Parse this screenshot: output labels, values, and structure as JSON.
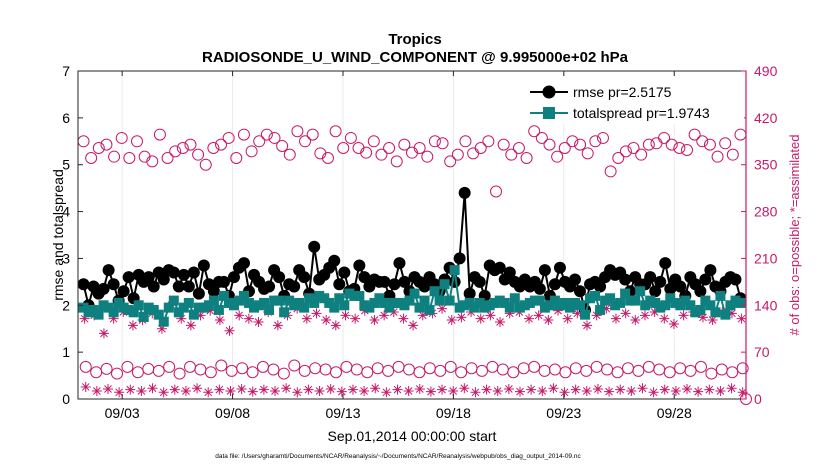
{
  "chart_data": {
    "type": "line",
    "title": "Tropics",
    "subtitle": "RADIOSONDE_U_WIND_COMPONENT @ 9.995000e+02 hPa",
    "xlabel": "Sep.01,2014 00:00:00 start",
    "ylabel_left": "rmse and totalspread",
    "ylabel_right": "# of obs: o=possible; *=assimilated",
    "footnote": "data file: /Users/gharamti/Documents/NCAR/Reanalysis/~/Documents/NCAR/Reanalysis/webpub/obs_diag_output_2014-09.nc",
    "ylim_left": [
      0,
      7
    ],
    "ylim_right": [
      0,
      490
    ],
    "xlim": [
      1.0,
      31.25
    ],
    "x_ticks": [
      3,
      8,
      13,
      18,
      23,
      28
    ],
    "x_tick_labels": [
      "09/03",
      "09/08",
      "09/13",
      "09/18",
      "09/23",
      "09/28"
    ],
    "y_ticks_left": [
      0,
      1,
      2,
      3,
      4,
      5,
      6,
      7
    ],
    "y_ticks_right": [
      0,
      70,
      140,
      210,
      280,
      350,
      420,
      490
    ],
    "legend": [
      {
        "label": "rmse pr=2.5175",
        "color": "#000000",
        "marker": "circle"
      },
      {
        "label": "totalspread pr=1.9743",
        "color": "#0f8080",
        "marker": "square"
      }
    ],
    "colors": {
      "rmse": "#000000",
      "totalspread": "#0f8080",
      "obs": "#c8196b"
    },
    "series": [
      {
        "name": "rmse",
        "values": [
          2.45,
          2.0,
          2.4,
          2.25,
          2.35,
          2.75,
          2.45,
          2.1,
          2.3,
          2.6,
          2.15,
          2.65,
          2.5,
          2.6,
          2.4,
          2.7,
          2.55,
          2.75,
          2.7,
          2.4,
          2.65,
          2.4,
          2.7,
          2.25,
          2.85,
          2.45,
          2.3,
          2.5,
          2.5,
          2.2,
          2.6,
          2.8,
          2.9,
          2.3,
          2.65,
          2.5,
          2.35,
          2.4,
          2.75,
          2.6,
          2.2,
          2.45,
          2.4,
          2.75,
          2.6,
          2.25,
          3.25,
          2.55,
          2.65,
          2.8,
          2.95,
          2.45,
          2.7,
          2.3,
          2.35,
          2.85,
          2.6,
          2.4,
          2.55,
          2.5,
          2.5,
          2.2,
          2.45,
          2.9,
          2.5,
          2.3,
          2.6,
          2.5,
          2.4,
          2.6,
          2.45,
          2.3,
          2.55,
          2.8,
          2.5,
          3.0,
          4.4,
          2.25,
          2.6,
          2.5,
          2.2,
          2.85,
          2.75,
          2.8,
          2.55,
          2.7,
          2.5,
          2.4,
          2.55,
          2.4,
          2.5,
          2.35,
          2.75,
          2.2,
          2.45,
          2.8,
          2.5,
          2.4,
          2.55,
          2.3,
          1.9,
          2.45,
          2.5,
          2.4,
          2.6,
          2.75,
          2.65,
          2.7,
          2.55,
          2.3,
          2.6,
          2.45,
          2.45,
          2.6,
          2.3,
          2.5,
          2.9,
          2.35,
          2.55,
          2.4,
          2.2,
          2.6,
          2.45,
          2.3,
          2.55,
          2.75,
          2.4,
          2.3,
          2.5,
          2.6,
          2.55,
          2.15
        ]
      },
      {
        "name": "totalspread",
        "values": [
          1.95,
          1.85,
          1.9,
          1.8,
          2.0,
          1.95,
          1.85,
          2.05,
          1.95,
          1.9,
          1.85,
          2.0,
          1.75,
          1.95,
          1.9,
          1.8,
          1.65,
          1.95,
          2.1,
          1.85,
          1.95,
          2.05,
          1.8,
          1.95,
          1.95,
          2.0,
          2.1,
          1.9,
          2.2,
          2.05,
          2.0,
          2.1,
          2.2,
          2.05,
          1.95,
          2.0,
          2.05,
          1.9,
          2.1,
          2.1,
          1.85,
          2.1,
          2.0,
          2.05,
          1.95,
          2.15,
          2.05,
          2.2,
          2.15,
          2.05,
          1.95,
          2.15,
          2.0,
          2.25,
          2.2,
          2.2,
          2.0,
          1.95,
          2.05,
          2.15,
          2.05,
          1.95,
          2.05,
          2.05,
          2.0,
          2.1,
          2.25,
          1.95,
          2.1,
          1.9,
          2.3,
          2.1,
          2.45,
          2.1,
          2.75,
          1.95,
          2.0,
          2.05,
          1.95,
          2.05,
          1.95,
          2.0,
          2.05,
          2.1,
          2.05,
          1.95,
          2.15,
          1.95,
          2.0,
          2.05,
          2.1,
          2.1,
          1.95,
          2.0,
          2.1,
          2.0,
          2.05,
          1.95,
          2.05,
          2.0,
          1.8,
          2.15,
          2.2,
          1.9,
          2.1,
          2.15,
          2.0,
          2.05,
          2.25,
          2.1,
          2.1,
          2.3,
          2.0,
          2.1,
          2.05,
          1.95,
          2.0,
          2.15,
          2.05,
          2.0,
          2.1,
          2.0,
          1.85,
          1.9,
          2.1,
          2.0,
          1.85,
          2.2,
          1.8,
          2.0,
          2.1,
          2.05
        ]
      },
      {
        "name": "possible_00Z",
        "values": [
          385,
          360,
          375,
          380,
          362,
          390,
          360,
          385,
          362,
          355,
          395,
          360,
          370,
          375,
          380,
          365,
          350,
          375,
          380,
          390,
          360,
          395,
          370,
          385,
          395,
          390,
          378,
          365,
          400,
          385,
          395,
          367,
          360,
          400,
          375,
          390,
          375,
          368,
          385,
          365,
          375,
          355,
          380,
          368,
          375,
          362,
          385,
          382,
          355,
          365,
          385,
          367,
          375,
          385,
          310,
          380,
          365,
          375,
          360,
          400,
          390,
          380,
          362,
          375,
          385,
          380,
          367,
          385,
          390,
          340,
          360,
          370,
          375,
          365,
          380,
          382,
          390,
          380,
          375,
          372,
          395,
          385,
          380,
          362,
          382,
          365,
          395
        ]
      },
      {
        "name": "possible_12Z",
        "values": [
          48,
          40,
          45,
          38,
          48,
          40,
          45,
          42,
          48,
          38,
          48,
          44,
          40,
          50,
          42,
          46,
          40,
          48,
          44,
          38,
          50,
          42,
          46,
          44,
          40,
          48,
          44,
          40,
          46,
          42,
          48,
          44,
          40,
          46,
          42,
          48,
          40,
          46,
          42,
          48,
          44,
          40,
          46,
          48,
          42,
          44,
          40,
          46,
          42,
          48,
          44,
          40,
          46,
          42,
          48,
          44,
          40,
          46,
          42,
          48,
          38,
          44,
          40,
          46
        ]
      },
      {
        "name": "assimilated_00Z",
        "values": [
          120,
          125,
          98,
          120,
          130,
          110,
          118,
          128,
          105,
          140,
          120,
          110,
          125,
          132,
          118,
          102,
          125,
          120,
          115,
          130,
          110,
          125,
          135,
          120,
          128,
          118,
          110,
          125,
          120,
          132,
          118,
          125,
          130,
          120,
          110,
          125,
          128,
          135,
          118,
          122,
          130,
          120,
          125,
          115,
          128,
          130,
          120,
          125,
          118,
          132,
          120,
          128,
          110,
          125,
          135,
          120,
          128,
          118,
          125,
          130,
          120,
          112,
          125,
          130,
          122,
          118,
          130,
          128,
          120
        ]
      },
      {
        "name": "assimilated_12Z",
        "values": [
          18,
          12,
          15,
          10,
          14,
          12,
          16,
          10,
          14,
          12,
          16,
          10,
          14,
          12,
          15,
          11,
          14,
          12,
          16,
          10,
          14,
          12,
          15,
          11,
          14,
          12,
          16,
          10,
          14,
          12,
          15,
          11,
          14,
          12,
          16,
          10,
          14,
          12,
          15,
          11,
          14,
          12,
          16,
          10,
          14,
          12,
          15,
          11,
          14,
          12,
          16,
          10,
          14,
          12,
          15,
          11,
          14,
          12,
          16,
          10
        ]
      }
    ]
  }
}
